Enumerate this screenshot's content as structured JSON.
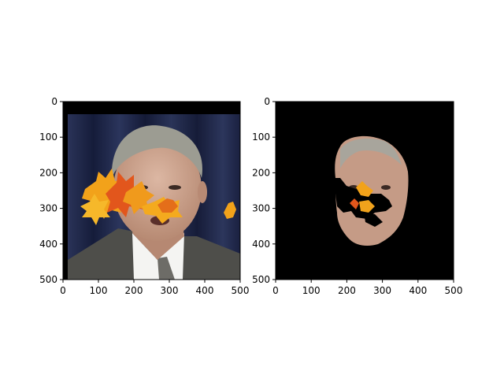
{
  "figure": {
    "panels": [
      {
        "name": "left-panel",
        "content": "photo of man in suit with orange autumn maple leaves overlaid on the face"
      },
      {
        "name": "right-panel",
        "content": "segmented face region on black background with leaf-occluded holes"
      }
    ]
  },
  "chart_data": [
    {
      "type": "image",
      "title": "",
      "xlabel": "",
      "ylabel": "",
      "xlim": [
        0,
        500
      ],
      "ylim": [
        500,
        0
      ],
      "xticks": [
        0,
        100,
        200,
        300,
        400,
        500
      ],
      "yticks": [
        0,
        100,
        200,
        300,
        400,
        500
      ],
      "grid": false,
      "colors": {
        "background": "#1c2545",
        "face": "#c9a28c",
        "suit": "#4e4e4a",
        "leaf": "#f2a21a",
        "leaf_dark": "#e2561c"
      }
    },
    {
      "type": "image",
      "title": "",
      "xlabel": "",
      "ylabel": "",
      "xlim": [
        0,
        500
      ],
      "ylim": [
        500,
        0
      ],
      "xticks": [
        0,
        100,
        200,
        300,
        400,
        500
      ],
      "yticks": [
        0,
        100,
        200,
        300,
        400,
        500
      ],
      "grid": false,
      "colors": {
        "background": "#000000",
        "face": "#c59b86",
        "leaf": "#f2a21a"
      }
    }
  ]
}
